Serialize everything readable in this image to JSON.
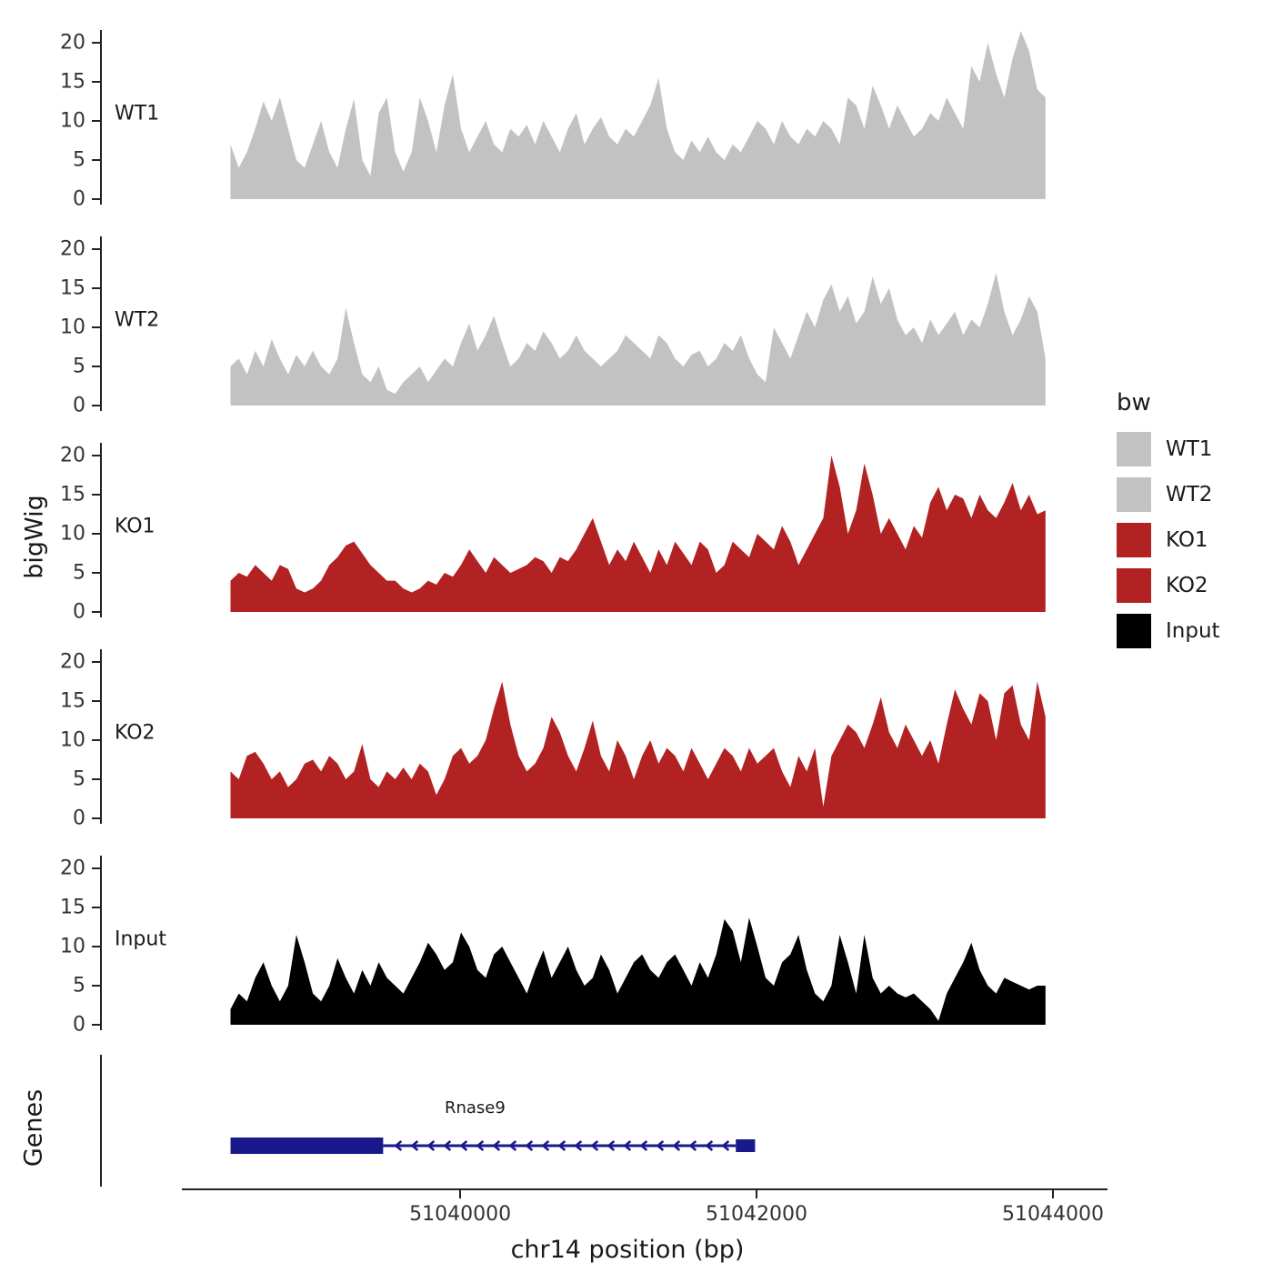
{
  "chart_data": {
    "type": "area",
    "title": "",
    "xlabel": "chr14 position (bp)",
    "ylabel": "bigWig",
    "genes_panel_label": "Genes",
    "x_domain": [
      51037600,
      51044350
    ],
    "data_start": 51038450,
    "data_end": 51043950,
    "x_ticks": [
      51040000,
      51042000,
      51044000
    ],
    "x_tick_labels": [
      "51040000",
      "51042000",
      "51044000"
    ],
    "y_ticks": [
      0,
      5,
      10,
      15,
      20
    ],
    "ylim": [
      0,
      22
    ],
    "grid": false,
    "legend": {
      "title": "bw",
      "position": "right",
      "items": [
        {
          "label": "WT1",
          "color": "#c2c2c2"
        },
        {
          "label": "WT2",
          "color": "#c2c2c2"
        },
        {
          "label": "KO1",
          "color": "#b22222"
        },
        {
          "label": "KO2",
          "color": "#b22222"
        },
        {
          "label": "Input",
          "color": "#000000"
        }
      ]
    },
    "tracks": [
      {
        "name": "WT1",
        "color": "#c2c2c2",
        "values": [
          7,
          4,
          6,
          9,
          12.5,
          10,
          13,
          9,
          5,
          4,
          7,
          10,
          6,
          4,
          9,
          12.8,
          5,
          3,
          11,
          13,
          6,
          3.5,
          6,
          13,
          10,
          6,
          12,
          16,
          9,
          6,
          8,
          10,
          7,
          6,
          9,
          8,
          9.5,
          7,
          10,
          8,
          6,
          9,
          11,
          7,
          9,
          10.5,
          8,
          7,
          9,
          8,
          10,
          12,
          15.5,
          9,
          6,
          5,
          7.5,
          6,
          8,
          6,
          5,
          7,
          6,
          8,
          10,
          9,
          7,
          10,
          8,
          7,
          9,
          8,
          10,
          9,
          7,
          13,
          12,
          9,
          14.5,
          12,
          9,
          12,
          10,
          8,
          9,
          11,
          10,
          13,
          11,
          9,
          17,
          15,
          20,
          16,
          13,
          18,
          21.5,
          19,
          14,
          13
        ]
      },
      {
        "name": "WT2",
        "color": "#c2c2c2",
        "values": [
          5,
          6,
          4,
          7,
          5,
          8.5,
          6,
          4,
          6.5,
          5,
          7,
          5,
          4,
          6,
          12.5,
          8,
          4,
          3,
          5,
          2,
          1.5,
          3,
          4,
          5,
          3,
          4.5,
          6,
          5,
          8,
          10.5,
          7,
          9,
          11.5,
          8,
          5,
          6,
          8,
          7,
          9.5,
          8,
          6,
          7,
          9,
          7,
          6,
          5,
          6,
          7,
          9,
          8,
          7,
          6,
          9,
          8,
          6,
          5,
          6.5,
          7,
          5,
          6,
          8,
          7,
          9,
          6,
          4,
          3,
          10,
          8,
          6,
          9,
          12,
          10,
          13.5,
          15.5,
          12,
          14,
          10.5,
          12,
          16.5,
          13,
          15,
          11,
          9,
          10,
          8,
          11,
          9,
          10.5,
          12,
          9,
          11,
          10,
          13,
          17,
          12,
          9,
          11,
          14,
          12,
          6
        ]
      },
      {
        "name": "KO1",
        "color": "#b22222",
        "values": [
          4,
          5,
          4.5,
          6,
          5,
          4,
          6,
          5.5,
          3,
          2.5,
          3,
          4,
          6,
          7,
          8.5,
          9,
          7.5,
          6,
          5,
          4,
          4,
          3,
          2.5,
          3,
          4,
          3.5,
          5,
          4.5,
          6,
          8,
          6.5,
          5,
          7,
          6,
          5,
          5.5,
          6,
          7,
          6.5,
          5,
          7,
          6.5,
          8,
          10,
          12,
          9,
          6,
          8,
          6.5,
          9,
          7,
          5,
          8,
          6,
          9,
          7.5,
          6,
          9,
          8,
          5,
          6,
          9,
          8,
          7,
          10,
          9,
          8,
          11,
          9,
          6,
          8,
          10,
          12,
          20,
          16,
          10,
          13,
          19,
          15,
          10,
          12,
          10,
          8,
          11,
          9.5,
          14,
          16,
          13,
          15,
          14.5,
          12,
          15,
          13,
          12,
          14,
          16.5,
          13,
          15,
          12.5,
          13
        ]
      },
      {
        "name": "KO2",
        "color": "#b22222",
        "values": [
          6,
          5,
          8,
          8.5,
          7,
          5,
          6,
          4,
          5,
          7,
          7.5,
          6,
          8,
          7,
          5,
          6,
          9.5,
          5,
          4,
          6,
          5,
          6.5,
          5,
          7,
          6,
          3,
          5,
          8,
          9,
          7,
          8,
          10,
          14,
          17.5,
          12,
          8,
          6,
          7,
          9,
          13,
          11,
          8,
          6,
          9,
          12.5,
          8,
          6,
          10,
          8,
          5,
          8,
          10,
          7,
          9,
          8,
          6,
          9,
          7,
          5,
          7,
          9,
          8,
          6,
          9,
          7,
          8,
          9,
          6,
          4,
          8,
          6,
          9,
          1.5,
          8,
          10,
          12,
          11,
          9,
          12,
          15.5,
          11,
          9,
          12,
          10,
          8,
          10,
          7,
          12,
          16.5,
          14,
          12,
          16,
          15,
          10,
          16,
          17,
          12,
          10,
          17.5,
          13
        ]
      },
      {
        "name": "Input",
        "color": "#000000",
        "values": [
          2,
          4,
          3,
          6,
          8,
          5,
          3,
          5,
          11.5,
          8,
          4,
          3,
          5,
          8.5,
          6,
          4,
          7,
          5,
          8,
          6,
          5,
          4,
          6,
          8,
          10.5,
          9,
          7,
          8,
          11.8,
          10,
          7,
          6,
          9,
          10,
          8,
          6,
          4,
          7,
          9.5,
          6,
          8,
          10,
          7,
          5,
          6,
          9,
          7,
          4,
          6,
          8,
          9,
          7,
          6,
          8,
          9,
          7,
          5,
          8,
          6,
          9,
          13.5,
          12,
          8,
          13.7,
          10,
          6,
          5,
          8,
          9,
          11.5,
          7,
          4,
          3,
          5,
          11.5,
          8,
          4,
          11.5,
          6,
          4,
          5,
          4,
          3.5,
          4,
          3,
          2,
          0.5,
          4,
          6,
          8,
          10.5,
          7,
          5,
          4,
          6,
          5.5,
          5,
          4.5,
          5,
          5
        ]
      }
    ],
    "gene_track": {
      "gene_name": "Rnase9",
      "color": "#19198c",
      "strand": "-",
      "thick_start": 51038450,
      "thick_end": 51039480,
      "intron_line_end": 51041850,
      "end_box_start": 51041860,
      "end_box_end": 51041990
    }
  }
}
